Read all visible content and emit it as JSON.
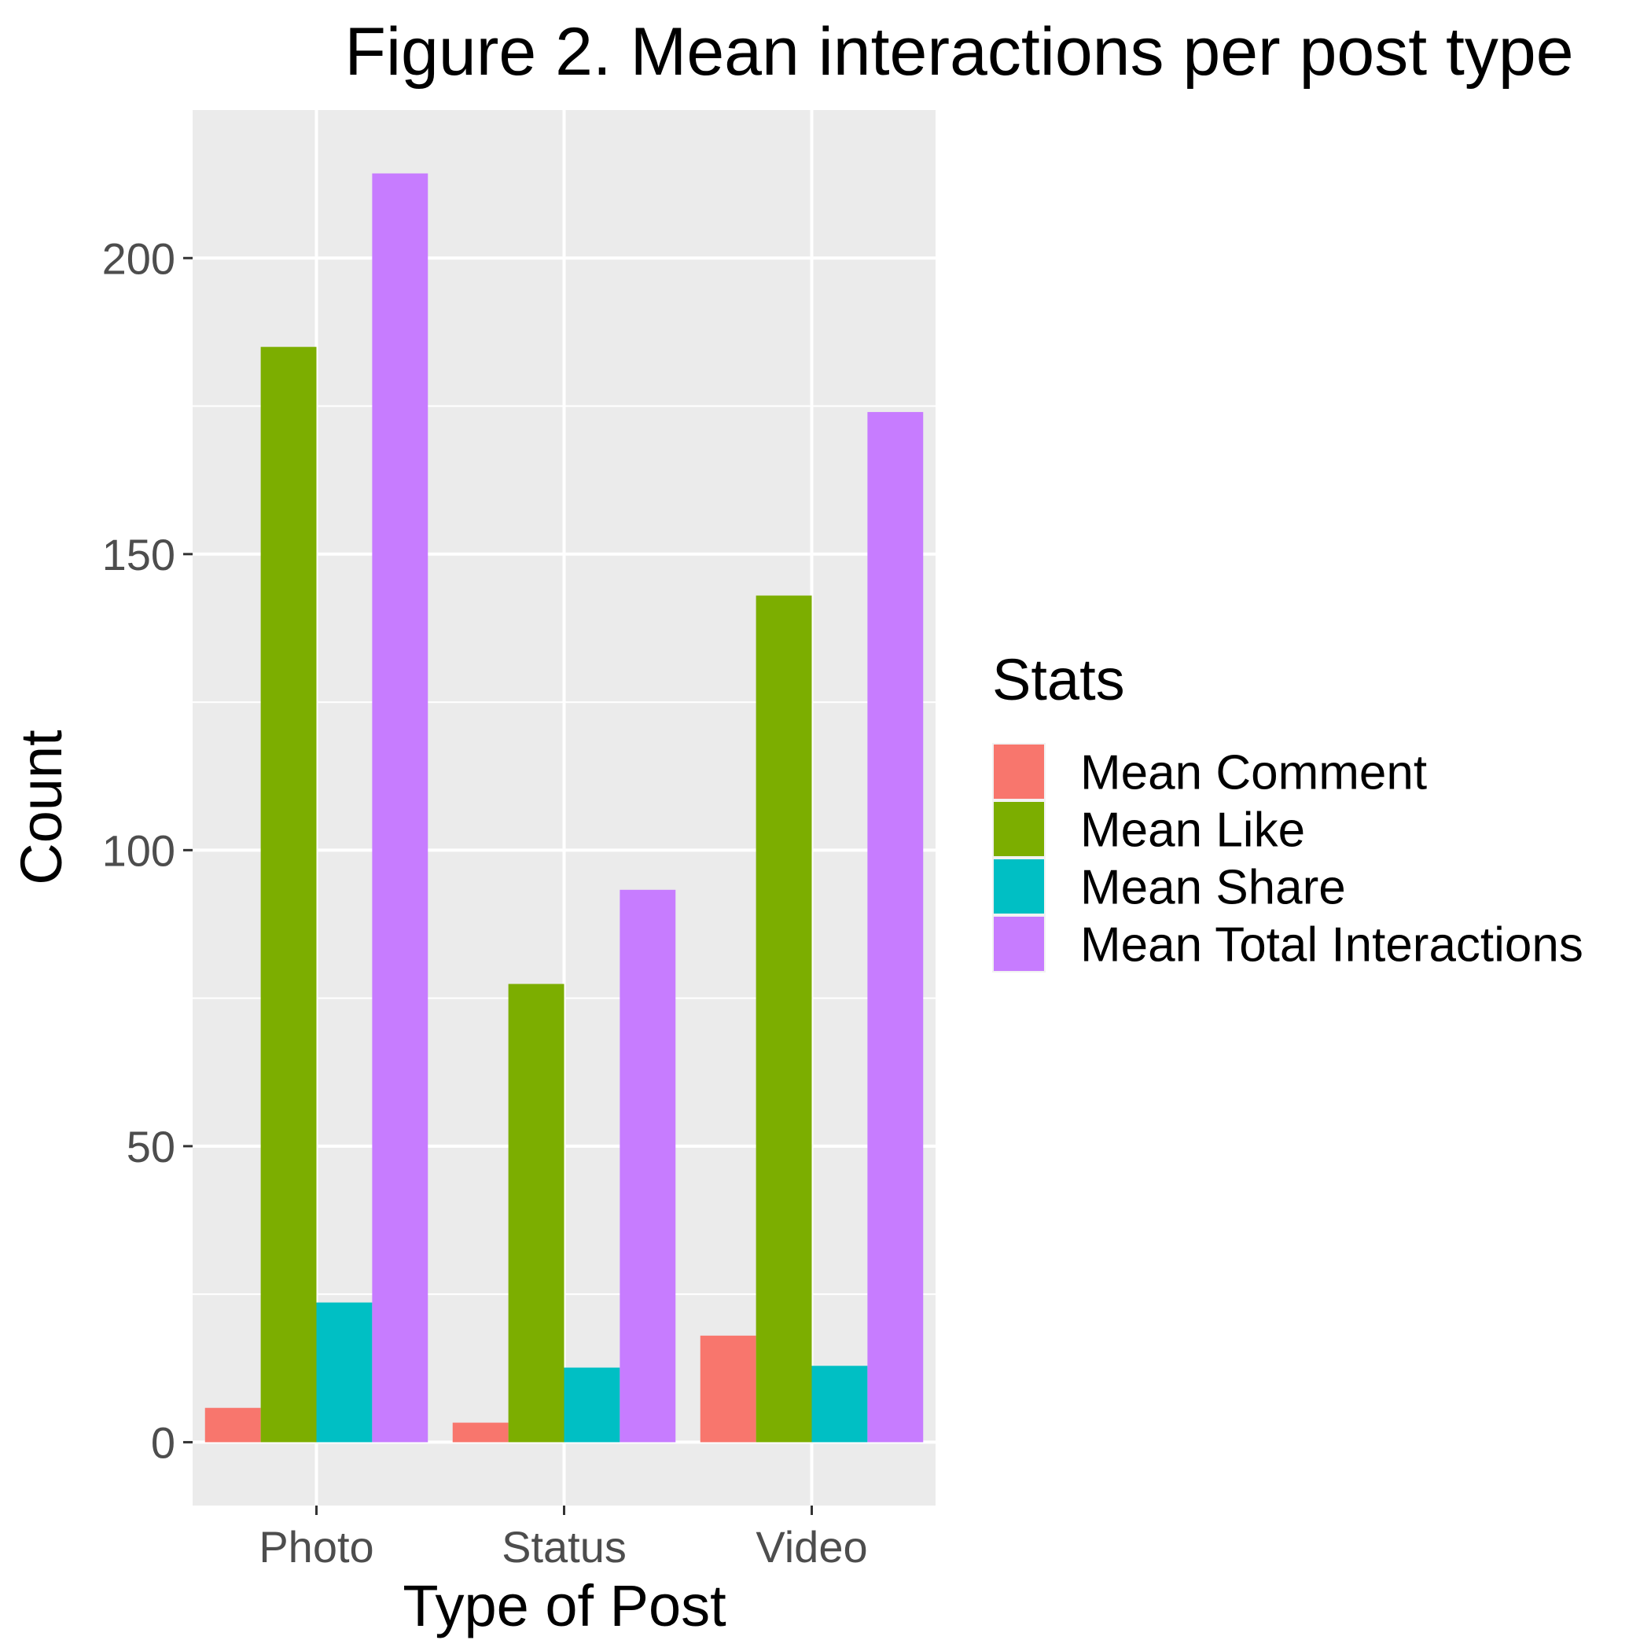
{
  "chart_data": {
    "type": "bar",
    "title": "Figure 2. Mean interactions per post type",
    "xlabel": "Type of Post",
    "ylabel": "Count",
    "categories": [
      "Photo",
      "Status",
      "Video"
    ],
    "series": [
      {
        "name": "Mean Comment",
        "color": "#F8766D",
        "values": [
          5.8,
          3.3,
          18.0
        ]
      },
      {
        "name": "Mean Like",
        "color": "#7CAE00",
        "values": [
          185,
          77.4,
          143
        ]
      },
      {
        "name": "Mean Share",
        "color": "#00BFC4",
        "values": [
          23.6,
          12.6,
          12.9
        ]
      },
      {
        "name": "Mean Total Interactions",
        "color": "#C77CFF",
        "values": [
          214.3,
          93.3,
          174
        ]
      }
    ],
    "ylim": [
      -10.7,
      225
    ],
    "yticks": [
      0,
      50,
      100,
      150,
      200
    ],
    "ytick_labels": [
      "0",
      "50",
      "100",
      "150",
      "200"
    ],
    "grid": true,
    "legend": {
      "title": "Stats",
      "position": "right"
    }
  }
}
